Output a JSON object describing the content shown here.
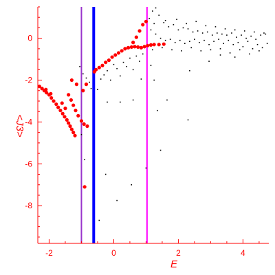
{
  "chart_data": {
    "type": "scatter",
    "title": "",
    "xlabel": "E",
    "ylabel": "<J3>",
    "xlim": [
      -2.35,
      4.8
    ],
    "ylim": [
      -9.8,
      1.5
    ],
    "x_ticks": [
      -2,
      0,
      2,
      4
    ],
    "y_ticks": [
      0,
      -2,
      -4,
      -6,
      -8
    ],
    "grid": false,
    "colors": {
      "axis": "#ff0000",
      "series_red": "#ff0000",
      "series_black": "#000000",
      "line_purple": "#9933cc",
      "line_blue": "#0000ff",
      "line_magenta": "#ff00ff"
    },
    "vertical_lines": [
      {
        "x": -1.0,
        "color": "#9933cc"
      },
      {
        "x": -0.62,
        "color": "#0000ff"
      },
      {
        "x": 1.03,
        "color": "#ff00ff"
      }
    ],
    "series": [
      {
        "color": "#ff0000",
        "marker": "large",
        "points": [
          [
            -2.3,
            -2.3
          ],
          [
            -2.22,
            -2.4
          ],
          [
            -2.15,
            -2.5
          ],
          [
            -2.08,
            -2.6
          ],
          [
            -2.0,
            -2.7
          ],
          [
            -1.93,
            -2.85
          ],
          [
            -1.86,
            -3.0
          ],
          [
            -1.78,
            -3.15
          ],
          [
            -1.72,
            -3.3
          ],
          [
            -1.65,
            -3.45
          ],
          [
            -1.58,
            -3.6
          ],
          [
            -1.52,
            -3.75
          ],
          [
            -1.45,
            -3.9
          ],
          [
            -1.4,
            -4.05
          ],
          [
            -1.35,
            -4.2
          ],
          [
            -1.3,
            -4.35
          ],
          [
            -1.25,
            -4.5
          ],
          [
            -1.2,
            -4.65
          ],
          [
            -2.1,
            -2.45
          ],
          [
            -1.95,
            -2.65
          ],
          [
            -1.6,
            -3.1
          ],
          [
            -1.5,
            -3.35
          ],
          [
            -1.4,
            -2.7
          ],
          [
            -1.32,
            -2.95
          ],
          [
            -1.25,
            -3.2
          ],
          [
            -1.18,
            -3.45
          ],
          [
            -1.1,
            -3.7
          ],
          [
            -1.0,
            -3.95
          ],
          [
            -0.92,
            -4.1
          ],
          [
            -0.82,
            -4.2
          ],
          [
            -1.3,
            -2.0
          ],
          [
            -1.15,
            -2.2
          ],
          [
            -0.95,
            -2.5
          ],
          [
            -0.85,
            -2.2
          ],
          [
            -0.6,
            -1.6
          ],
          [
            -0.55,
            -1.5
          ],
          [
            -0.45,
            -1.4
          ],
          [
            -0.35,
            -1.3
          ],
          [
            -0.25,
            -1.15
          ],
          [
            -0.15,
            -1.05
          ],
          [
            -0.05,
            -0.9
          ],
          [
            0.05,
            -0.8
          ],
          [
            0.15,
            -0.7
          ],
          [
            0.25,
            -0.6
          ],
          [
            0.35,
            -0.5
          ],
          [
            0.45,
            -0.45
          ],
          [
            0.55,
            -0.42
          ],
          [
            0.65,
            -0.4
          ],
          [
            0.75,
            -0.42
          ],
          [
            0.85,
            -0.45
          ],
          [
            0.95,
            -0.4
          ],
          [
            1.05,
            -0.35
          ],
          [
            1.15,
            -0.32
          ],
          [
            1.25,
            -0.3
          ],
          [
            1.4,
            -0.3
          ],
          [
            1.55,
            -0.28
          ],
          [
            0.6,
            -0.2
          ],
          [
            0.7,
            0.05
          ],
          [
            0.8,
            0.35
          ],
          [
            0.9,
            0.65
          ],
          [
            1.0,
            0.8
          ],
          [
            -0.9,
            -7.1
          ]
        ]
      },
      {
        "color": "#000000",
        "marker": "small",
        "points": [
          [
            -1.05,
            -1.35
          ],
          [
            -0.95,
            -1.7
          ],
          [
            -0.85,
            -1.9
          ],
          [
            -0.75,
            -2.1
          ],
          [
            -0.7,
            -2.4
          ],
          [
            -0.5,
            -2.45
          ],
          [
            -0.4,
            -1.95
          ],
          [
            -0.3,
            -1.75
          ],
          [
            -0.2,
            -1.55
          ],
          [
            -0.1,
            -2.0
          ],
          [
            0.0,
            -1.25
          ],
          [
            0.1,
            -1.45
          ],
          [
            0.2,
            -1.8
          ],
          [
            0.3,
            -1.15
          ],
          [
            0.4,
            -1.35
          ],
          [
            0.5,
            -0.95
          ],
          [
            0.6,
            -1.5
          ],
          [
            0.7,
            -0.85
          ],
          [
            0.8,
            -1.1
          ],
          [
            0.9,
            -0.75
          ],
          [
            0.2,
            -3.05
          ],
          [
            -0.2,
            -3.05
          ],
          [
            0.6,
            -2.95
          ],
          [
            0.85,
            -1.95
          ],
          [
            1.15,
            -1.3
          ],
          [
            1.25,
            -2.0
          ],
          [
            1.35,
            -3.45
          ],
          [
            1.45,
            -5.35
          ],
          [
            1.65,
            -2.95
          ],
          [
            2.35,
            -1.55
          ],
          [
            2.3,
            -3.9
          ],
          [
            2.95,
            -1.1
          ],
          [
            3.3,
            -0.8
          ],
          [
            3.75,
            -0.9
          ],
          [
            0.55,
            -7.0
          ],
          [
            0.1,
            -7.75
          ],
          [
            -0.45,
            -8.7
          ],
          [
            -0.25,
            -6.5
          ],
          [
            1.0,
            -6.2
          ],
          [
            -0.9,
            -5.8
          ],
          [
            -1.0,
            -4.6
          ],
          [
            1.1,
            0.95
          ],
          [
            1.2,
            1.3
          ],
          [
            1.3,
            1.45
          ],
          [
            1.4,
            1.1
          ],
          [
            1.55,
            0.75
          ],
          [
            1.7,
            0.55
          ],
          [
            1.85,
            0.65
          ],
          [
            2.0,
            0.4
          ],
          [
            2.15,
            0.5
          ],
          [
            2.3,
            0.45
          ],
          [
            2.45,
            0.3
          ],
          [
            2.6,
            0.35
          ],
          [
            2.75,
            0.25
          ],
          [
            2.9,
            0.3
          ],
          [
            3.05,
            0.15
          ],
          [
            3.2,
            0.25
          ],
          [
            3.35,
            0.2
          ],
          [
            3.5,
            0.15
          ],
          [
            3.65,
            0.25
          ],
          [
            3.8,
            0.05
          ],
          [
            3.95,
            0.15
          ],
          [
            4.1,
            0.0
          ],
          [
            4.25,
            0.1
          ],
          [
            4.4,
            -0.05
          ],
          [
            4.55,
            0.15
          ],
          [
            4.7,
            0.2
          ],
          [
            1.15,
            0.4
          ],
          [
            1.3,
            0.2
          ],
          [
            1.45,
            0.0
          ],
          [
            1.6,
            -0.1
          ],
          [
            1.75,
            -0.05
          ],
          [
            1.9,
            -0.2
          ],
          [
            2.05,
            -0.1
          ],
          [
            2.2,
            -0.25
          ],
          [
            2.35,
            -0.15
          ],
          [
            2.5,
            -0.05
          ],
          [
            2.65,
            -0.2
          ],
          [
            2.8,
            -0.1
          ],
          [
            2.95,
            -0.3
          ],
          [
            3.1,
            -0.15
          ],
          [
            3.25,
            -0.05
          ],
          [
            3.4,
            -0.25
          ],
          [
            3.55,
            -0.1
          ],
          [
            3.7,
            -0.3
          ],
          [
            3.85,
            -0.2
          ],
          [
            4.0,
            -0.4
          ],
          [
            4.15,
            -0.15
          ],
          [
            4.3,
            -0.5
          ],
          [
            4.45,
            -0.3
          ],
          [
            4.6,
            -0.45
          ],
          [
            4.75,
            -0.25
          ],
          [
            1.2,
            -0.55
          ],
          [
            1.5,
            -0.45
          ],
          [
            1.8,
            -0.55
          ],
          [
            2.1,
            -0.6
          ],
          [
            2.4,
            -0.45
          ],
          [
            2.7,
            -0.6
          ],
          [
            3.0,
            -0.55
          ],
          [
            3.3,
            -0.5
          ],
          [
            3.6,
            -0.7
          ],
          [
            3.9,
            -0.55
          ],
          [
            4.2,
            -0.75
          ],
          [
            4.5,
            -0.6
          ],
          [
            1.25,
            0.7
          ],
          [
            1.6,
            0.85
          ],
          [
            1.95,
            0.9
          ],
          [
            2.25,
            0.7
          ],
          [
            2.55,
            0.8
          ],
          [
            2.85,
            0.6
          ],
          [
            3.15,
            0.55
          ],
          [
            3.45,
            0.45
          ],
          [
            3.75,
            0.4
          ],
          [
            4.05,
            0.35
          ],
          [
            4.35,
            0.3
          ],
          [
            4.65,
            0.25
          ]
        ]
      }
    ]
  }
}
